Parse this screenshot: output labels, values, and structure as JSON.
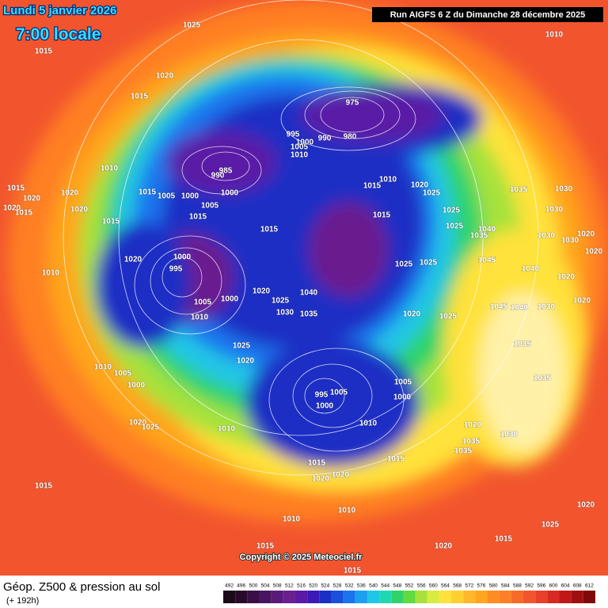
{
  "header": {
    "valid_date": "Lundi 5 janvier 2026",
    "valid_time": "7:00 locale",
    "run": "Run AIGFS 6 Z du Dimanche 28 décembre 2025"
  },
  "footer": {
    "title": "Géop. Z500 & pression au sol",
    "lead": "(+ 192h)",
    "copyright": "Copyright © 2025 Meteociel.fr"
  },
  "colorbar": {
    "ticks": [
      492,
      496,
      500,
      504,
      508,
      512,
      516,
      520,
      524,
      528,
      532,
      536,
      540,
      544,
      548,
      552,
      556,
      560,
      564,
      568,
      572,
      576,
      580,
      584,
      588,
      592,
      596,
      600,
      604,
      608,
      612
    ]
  },
  "isobar_labels": [
    1025,
    1015,
    1020,
    1015,
    1010,
    975,
    995,
    1000,
    990,
    980,
    1005,
    1010,
    985,
    990,
    1000,
    1000,
    1005,
    1015,
    1005,
    1010,
    1015,
    1020,
    1020,
    1020,
    1015,
    1020,
    1015,
    1015,
    1015,
    1015,
    1010,
    1020,
    1025,
    1015,
    1025,
    1020,
    1000,
    995,
    1005,
    1000,
    1010,
    1020,
    1025,
    1030,
    1040,
    1035,
    1025,
    1025,
    1020,
    1025,
    1010,
    1025,
    1020,
    1010,
    1005,
    1000,
    1020,
    1025,
    1010,
    995,
    1005,
    1000,
    1005,
    1000,
    1010,
    1015,
    1015,
    1020,
    1020,
    1010,
    1010,
    1015,
    1015,
    1015,
    1035,
    1030,
    1030,
    1040,
    1035,
    1030,
    1030,
    1045,
    1040,
    1020,
    1030,
    1020,
    1045,
    1040,
    1035,
    1035,
    1030,
    1020,
    1035,
    1035,
    1020,
    1025,
    1020,
    1015,
    1020,
    1020,
    1025
  ]
}
